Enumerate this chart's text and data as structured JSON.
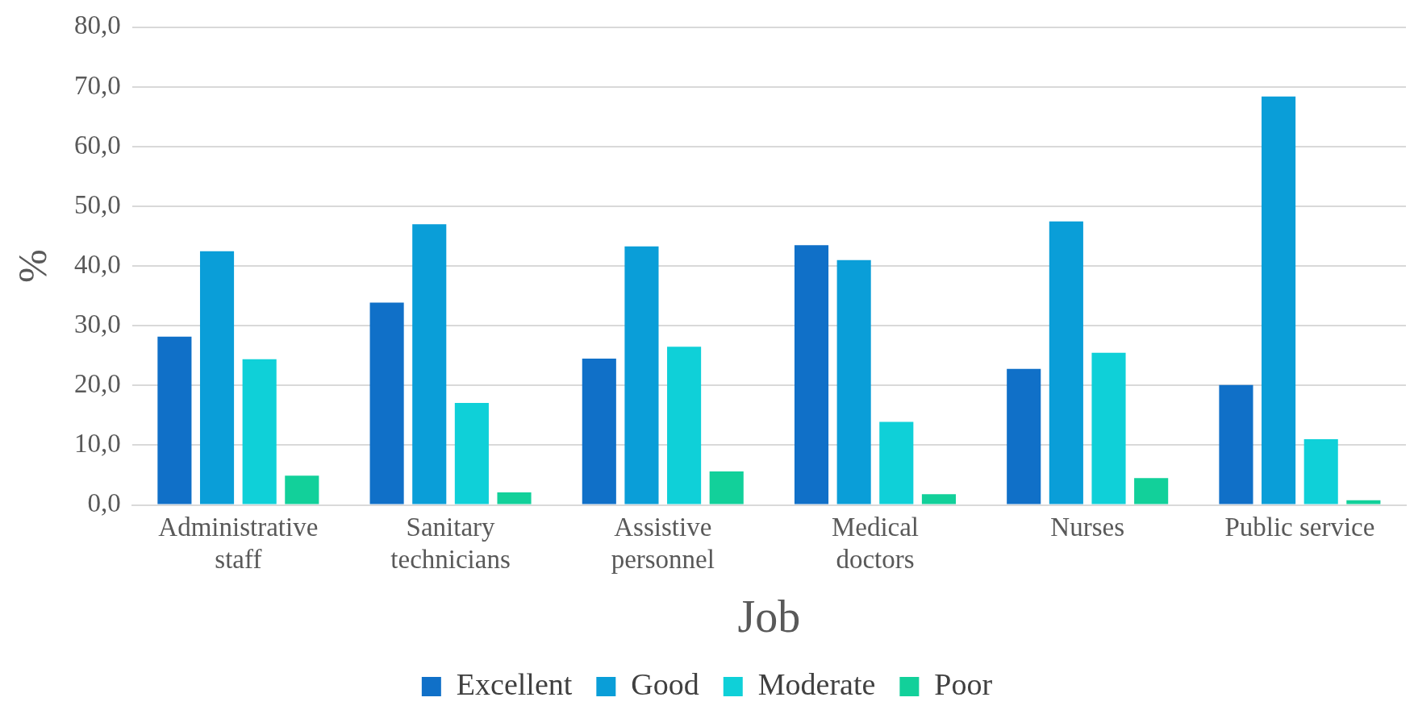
{
  "chart_data": {
    "type": "bar",
    "xlabel": "Job",
    "ylabel": "%",
    "categories": [
      "Administrative staff",
      "Sanitary technicians",
      "Assistive personnel",
      "Medical doctors",
      "Nurses",
      "Public service"
    ],
    "series": [
      {
        "name": "Excellent",
        "color": "#1070c8",
        "values": [
          28.2,
          33.9,
          24.5,
          43.5,
          22.8,
          20.1
        ]
      },
      {
        "name": "Good",
        "color": "#0a9ed8",
        "values": [
          42.5,
          47.0,
          43.3,
          41.0,
          47.5,
          68.4
        ]
      },
      {
        "name": "Moderate",
        "color": "#0fd0d8",
        "values": [
          24.4,
          17.1,
          26.5,
          13.9,
          25.5,
          11.0
        ]
      },
      {
        "name": "Poor",
        "color": "#12d09a",
        "values": [
          4.9,
          2.1,
          5.6,
          1.8,
          4.5,
          0.8
        ]
      }
    ],
    "ylim": [
      0,
      80
    ],
    "yticks": [
      {
        "value": 0,
        "label": "0,0"
      },
      {
        "value": 10,
        "label": "10,0"
      },
      {
        "value": 20,
        "label": "20,0"
      },
      {
        "value": 30,
        "label": "30,0"
      },
      {
        "value": 40,
        "label": "40,0"
      },
      {
        "value": 50,
        "label": "50,0"
      },
      {
        "value": 60,
        "label": "60,0"
      },
      {
        "value": 70,
        "label": "70,0"
      },
      {
        "value": 80,
        "label": "80,0"
      }
    ],
    "grid": "y",
    "legend": "bottom"
  }
}
